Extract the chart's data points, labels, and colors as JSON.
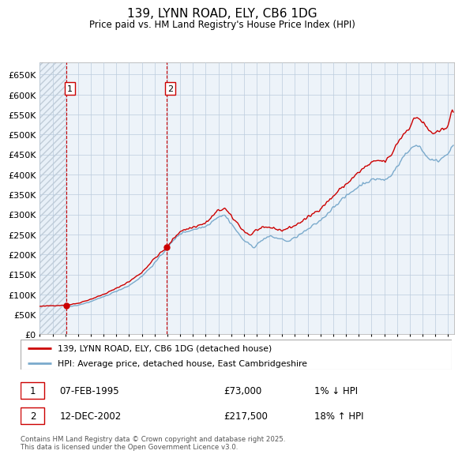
{
  "title": "139, LYNN ROAD, ELY, CB6 1DG",
  "subtitle": "Price paid vs. HM Land Registry's House Price Index (HPI)",
  "legend_line1": "139, LYNN ROAD, ELY, CB6 1DG (detached house)",
  "legend_line2": "HPI: Average price, detached house, East Cambridgeshire",
  "sale1_date": "07-FEB-1995",
  "sale1_price": 73000,
  "sale1_label": "1% ↓ HPI",
  "sale2_date": "12-DEC-2002",
  "sale2_price": 217500,
  "sale2_label": "18% ↑ HPI",
  "hpi_color": "#7aaacc",
  "price_color": "#cc0000",
  "background_color": "#ffffff",
  "grid_color": "#cccccc",
  "ylim": [
    0,
    680000
  ],
  "sale1_year": 1995.1,
  "sale2_year": 2002.96,
  "hpi_start_year": 1995.0,
  "footer": "Contains HM Land Registry data © Crown copyright and database right 2025.\nThis data is licensed under the Open Government Licence v3.0.",
  "xmin": 1993,
  "xmax": 2025.5
}
